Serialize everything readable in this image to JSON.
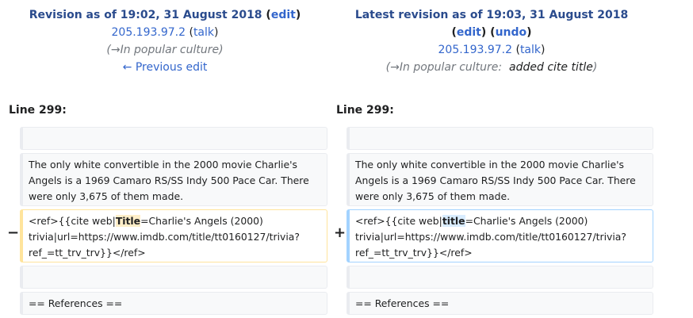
{
  "left_header": {
    "title_text": "Revision as of 19:02, 31 August 2018",
    "open_paren": "(",
    "edit_link": "edit",
    "close_paren": ")",
    "user_link": "205.193.97.2",
    "talk_open": "(",
    "talk_link": "talk",
    "talk_close": ")",
    "summary_open": "(",
    "summary_section": "→In popular culture",
    "summary_close": ")",
    "prev_link": "← Previous edit"
  },
  "right_header": {
    "title_text": "Latest revision as of 19:03, 31 August 2018",
    "edit_open": "(",
    "edit_link": "edit",
    "edit_close": ")",
    "undo_open": "(",
    "undo_link": "undo",
    "undo_close": ")",
    "user_link": "205.193.97.2",
    "talk_open": "(",
    "talk_link": "talk",
    "talk_close": ")",
    "summary_open": "(",
    "summary_section": "→In popular culture:",
    "summary_text": "added cite title",
    "summary_close": ")"
  },
  "diff": {
    "left_line": "Line 299:",
    "right_line": "Line 299:",
    "context_para": "The only white convertible in the 2000 movie Charlie's Angels is a 1969 Camaro RS/SS Indy 500 Pace Car. There were only 3,675 of them made.",
    "changed_prefix": "<ref>{{cite web|",
    "left_changed_word": "Title",
    "right_changed_word": "title",
    "changed_suffix": "=Charlie's Angels (2000) trivia|url=https://www.imdb.com/title/tt0160127/trivia?ref_=tt_trv_trv}}</ref>",
    "references": "== References ==",
    "minus_sign": "−",
    "plus_sign": "+"
  }
}
